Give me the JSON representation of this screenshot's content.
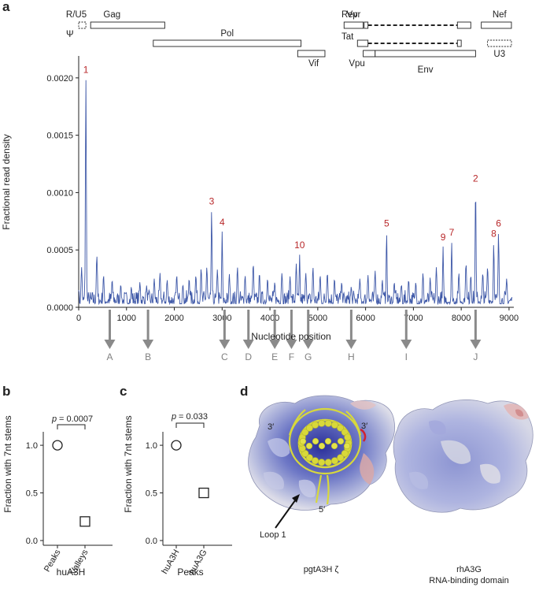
{
  "panels": {
    "a": {
      "letter": "a",
      "genes": [
        {
          "label": "R/U5",
          "start": 0,
          "end": 150,
          "row": 0,
          "style": "dashed"
        },
        {
          "label": "Gag",
          "start": 250,
          "end": 1800,
          "row": 0,
          "style": "solid"
        },
        {
          "label": "Vpr",
          "start": 5550,
          "end": 5950,
          "row": 0,
          "style": "solid"
        },
        {
          "label": "Nef",
          "start": 8420,
          "end": 9050,
          "row": 0,
          "style": "solid"
        },
        {
          "label": "Pol",
          "start": 1560,
          "end": 4650,
          "row": 1,
          "style": "solid"
        },
        {
          "label": "Vif",
          "start": 4580,
          "end": 5150,
          "row": 2,
          "style": "solid"
        },
        {
          "label": "Vpu",
          "start": 5950,
          "end": 6200,
          "row": 2,
          "style": "solid"
        },
        {
          "label": "Env",
          "start": 6200,
          "end": 8300,
          "row": 2,
          "style": "solid"
        },
        {
          "label": "U3",
          "start": 8550,
          "end": 9050,
          "row": 1,
          "style": "dashed"
        }
      ],
      "psi_label": "Ψ",
      "rev_label": "Rev",
      "tat_label": "Tat",
      "spliced": [
        {
          "name": "Rev",
          "exon1": [
            5970,
            6050
          ],
          "exon2": [
            7920,
            8200
          ],
          "row": 0
        },
        {
          "name": "Tat",
          "exon1": [
            5830,
            6050
          ],
          "exon2": [
            7920,
            8000
          ],
          "row": 1
        }
      ],
      "arrows": [
        {
          "label": "A",
          "x": 650
        },
        {
          "label": "B",
          "x": 1450
        },
        {
          "label": "C",
          "x": 3050
        },
        {
          "label": "D",
          "x": 3550
        },
        {
          "label": "E",
          "x": 4100
        },
        {
          "label": "F",
          "x": 4450
        },
        {
          "label": "G",
          "x": 4800
        },
        {
          "label": "H",
          "x": 5700
        },
        {
          "label": "I",
          "x": 6850
        },
        {
          "label": "J",
          "x": 8300
        }
      ]
    },
    "b": {
      "letter": "b",
      "pvalue": "= 0.0007",
      "xgroup_label": "huA3H"
    },
    "c": {
      "letter": "c",
      "pvalue": "= 0.033",
      "xgroup_label": "Peaks"
    },
    "d": {
      "letter": "d",
      "left_caption": "pgtA3H ζ",
      "right_caption_line1": "rhA3G",
      "right_caption_line2": "RNA-binding domain",
      "loop_label": "Loop 1",
      "end_labels": [
        "3′",
        "3′",
        "5′"
      ]
    }
  },
  "chart_data": [
    {
      "type": "line",
      "panel": "a",
      "xlabel": "Nucleotide position",
      "ylabel": "Fractional read density",
      "xlim": [
        0,
        9100
      ],
      "ylim": [
        0,
        0.00215
      ],
      "xticks": [
        0,
        1000,
        2000,
        3000,
        4000,
        5000,
        6000,
        7000,
        8000,
        9000
      ],
      "yticks": [
        0.0,
        0.0005,
        0.001,
        0.0015,
        0.002
      ],
      "ytick_labels": [
        "0.0000",
        "0.0005",
        "0.0010",
        "0.0015",
        "0.0020"
      ],
      "series_color": "#3e58a8",
      "peaks": [
        {
          "label": "1",
          "x": 150,
          "y": 0.00199
        },
        {
          "label": "3",
          "x": 2780,
          "y": 0.00084
        },
        {
          "label": "4",
          "x": 3000,
          "y": 0.00066
        },
        {
          "label": "10",
          "x": 4620,
          "y": 0.00046
        },
        {
          "label": "5",
          "x": 6440,
          "y": 0.00065
        },
        {
          "label": "9",
          "x": 7620,
          "y": 0.00053
        },
        {
          "label": "7",
          "x": 7800,
          "y": 0.00057
        },
        {
          "label": "2",
          "x": 8300,
          "y": 0.00104
        },
        {
          "label": "8",
          "x": 8680,
          "y": 0.00056
        },
        {
          "label": "6",
          "x": 8780,
          "y": 0.00065
        }
      ],
      "secondary_peaks": [
        [
          60,
          0.00035
        ],
        [
          380,
          0.00045
        ],
        [
          520,
          0.00028
        ],
        [
          700,
          0.00024
        ],
        [
          880,
          0.0002
        ],
        [
          1100,
          0.00018
        ],
        [
          1280,
          0.00022
        ],
        [
          1420,
          0.00019
        ],
        [
          1580,
          0.00025
        ],
        [
          1700,
          0.0003
        ],
        [
          1850,
          0.00024
        ],
        [
          2050,
          0.00028
        ],
        [
          2180,
          0.0002
        ],
        [
          2310,
          0.00025
        ],
        [
          2450,
          0.00028
        ],
        [
          2560,
          0.00034
        ],
        [
          2680,
          0.00035
        ],
        [
          2900,
          0.00033
        ],
        [
          3150,
          0.00029
        ],
        [
          3320,
          0.00035
        ],
        [
          3480,
          0.00028
        ],
        [
          3650,
          0.00038
        ],
        [
          3780,
          0.0003
        ],
        [
          3950,
          0.00025
        ],
        [
          4100,
          0.00022
        ],
        [
          4250,
          0.0003
        ],
        [
          4420,
          0.00027
        ],
        [
          4550,
          0.00038
        ],
        [
          4750,
          0.0003
        ],
        [
          4900,
          0.00035
        ],
        [
          5050,
          0.00028
        ],
        [
          5200,
          0.0003
        ],
        [
          5350,
          0.00025
        ],
        [
          5500,
          0.00022
        ],
        [
          5700,
          0.00018
        ],
        [
          5880,
          0.00025
        ],
        [
          6050,
          0.00028
        ],
        [
          6200,
          0.00032
        ],
        [
          6350,
          0.00024
        ],
        [
          6600,
          0.00022
        ],
        [
          6750,
          0.0002
        ],
        [
          6900,
          0.00024
        ],
        [
          7050,
          0.00022
        ],
        [
          7200,
          0.0003
        ],
        [
          7350,
          0.00026
        ],
        [
          7480,
          0.00035
        ],
        [
          7950,
          0.0003
        ],
        [
          8100,
          0.00038
        ],
        [
          8200,
          0.00028
        ],
        [
          8450,
          0.0003
        ],
        [
          8550,
          0.00035
        ],
        [
          8950,
          0.00025
        ]
      ]
    },
    {
      "type": "scatter",
      "panel": "b",
      "ylabel": "Fraction with 7nt stems",
      "categories": [
        "Peaks",
        "Valleys"
      ],
      "values": [
        1.0,
        0.2
      ],
      "markers": [
        "circle",
        "square"
      ],
      "ylim": [
        0,
        1.0
      ],
      "yticks": [
        0.0,
        0.5,
        1.0
      ]
    },
    {
      "type": "scatter",
      "panel": "c",
      "ylabel": "Fraction with 7nt stems",
      "categories": [
        "huA3H",
        "huA3G"
      ],
      "values": [
        1.0,
        0.5
      ],
      "markers": [
        "circle",
        "square"
      ],
      "ylim": [
        0,
        1.0
      ],
      "yticks": [
        0.0,
        0.5,
        1.0
      ]
    }
  ]
}
